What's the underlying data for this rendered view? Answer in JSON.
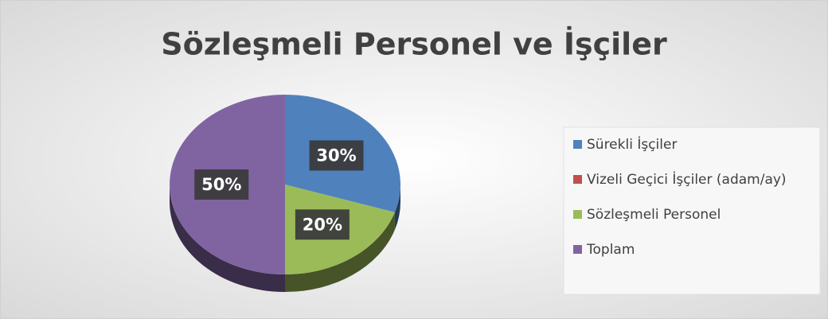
{
  "chart_data": {
    "type": "pie",
    "title": "Sözleşmeli Personel ve İşçiler",
    "categories": [
      "Sürekli İşçiler",
      "Vizeli Geçici İşçiler (adam/ay)",
      "Sözleşmeli Personel",
      "Toplam"
    ],
    "values": [
      30,
      0,
      20,
      50
    ],
    "value_labels": [
      "30%",
      null,
      "20%",
      "50%"
    ],
    "colors": [
      "#4f81bd",
      "#c0504d",
      "#9bbb59",
      "#8064a2"
    ],
    "legend": "right"
  }
}
